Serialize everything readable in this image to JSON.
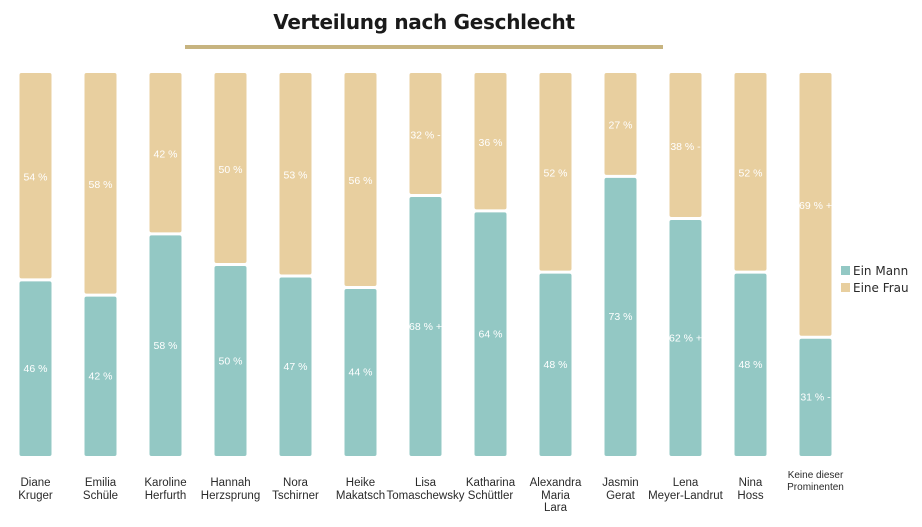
{
  "chart_data": {
    "type": "bar",
    "stacked": true,
    "orientation": "vertical",
    "title": "Verteilung nach Geschlecht",
    "xlabel": "",
    "ylabel": "",
    "ylim": [
      0,
      100
    ],
    "grid": false,
    "legend_position": "right",
    "categories": [
      "Diane\nKruger",
      "Emilia\nSchüle",
      "Karoline\nHerfurth",
      "Hannah\nHerzsprung",
      "Nora\nTschirner",
      "Heike\nMakatsch",
      "Lisa\nTomaschewsky",
      "Katharina\nSchüttler",
      "Alexandra\nMaria\nLara",
      "Jasmin\nGerat",
      "Lena\nMeyer-Landrut",
      "Nina\nHoss",
      "Keine dieser\nProminenten"
    ],
    "series": [
      {
        "name": "Ein Mann",
        "color": "#93c8c4",
        "values": [
          46,
          42,
          58,
          50,
          47,
          44,
          68,
          64,
          48,
          73,
          62,
          48,
          31
        ],
        "labels": [
          "46 %",
          "42 %",
          "58 %",
          "50 %",
          "47 %",
          "44 %",
          "68 % +",
          "64 %",
          "48 %",
          "73 %",
          "62 % +",
          "48 %",
          "31 % -"
        ]
      },
      {
        "name": "Eine Frau",
        "color": "#e8cf9f",
        "values": [
          54,
          58,
          42,
          50,
          53,
          56,
          32,
          36,
          52,
          27,
          38,
          52,
          69
        ],
        "labels": [
          "54 %",
          "58 %",
          "42 %",
          "50 %",
          "53 %",
          "56 %",
          "32 % -",
          "36 %",
          "52 %",
          "27 %",
          "38 % -",
          "52 %",
          "69 % +"
        ]
      }
    ]
  }
}
